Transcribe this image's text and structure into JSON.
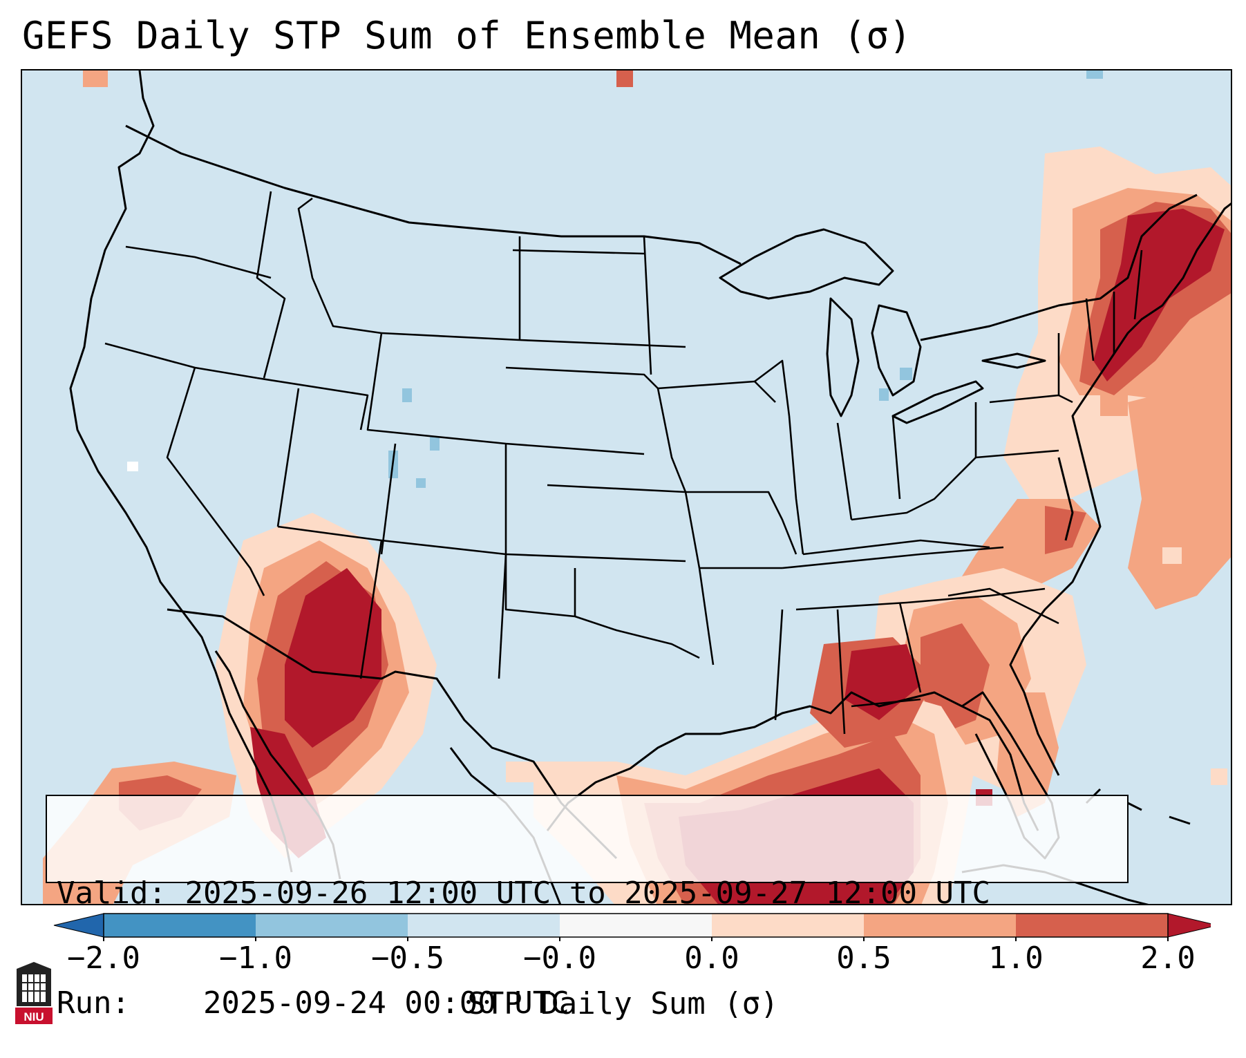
{
  "title": "GEFS Daily STP Sum of Ensemble Mean (σ)",
  "info_box": {
    "valid_label": "Valid:",
    "valid_value": "2025-09-26 12:00 UTC to 2025-09-27 12:00 UTC",
    "run_label": "Run:",
    "run_value": "2025-09-24 00:00 UTC"
  },
  "colorbar": {
    "label": "STP Daily Sum (σ)",
    "ticks": [
      "−2.0",
      "−1.0",
      "−0.5",
      "−0.0",
      "0.0",
      "0.5",
      "1.0",
      "2.0"
    ],
    "bins": [
      {
        "range": "below −2.0",
        "color": "#2166ac"
      },
      {
        "range": "−2.0 to −1.0",
        "color": "#4393c3"
      },
      {
        "range": "−1.0 to −0.5",
        "color": "#92c5de"
      },
      {
        "range": "−0.5 to −0.0",
        "color": "#d1e5f0"
      },
      {
        "range": "−0.0 to 0.0",
        "color": "#f7f7f7"
      },
      {
        "range": "0.0 to 0.5",
        "color": "#fddbc7"
      },
      {
        "range": "0.5 to 1.0",
        "color": "#f4a582"
      },
      {
        "range": "1.0 to 2.0",
        "color": "#d6604d"
      },
      {
        "range": "above 2.0",
        "color": "#b2182b"
      }
    ]
  },
  "logo": {
    "text": "NIU",
    "color": "#c8102e"
  },
  "colors": {
    "background": "#d1e5f0",
    "borders": "#000000"
  }
}
